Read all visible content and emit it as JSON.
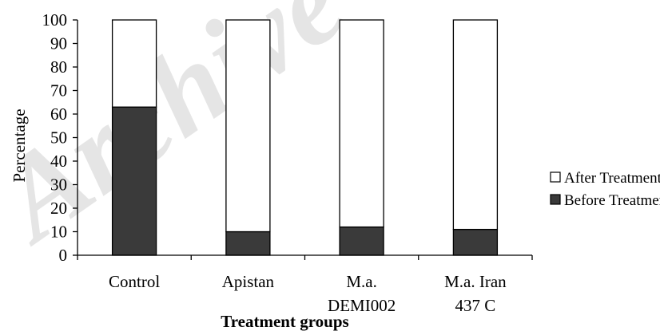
{
  "watermark": "Archive",
  "chart_data": {
    "type": "bar",
    "stacked": true,
    "categories": [
      [
        "Control"
      ],
      [
        "Apistan"
      ],
      [
        "M.a.",
        "DEMI002"
      ],
      [
        "M.a. Iran",
        "437 C"
      ]
    ],
    "series": [
      {
        "name": "Before Treatment",
        "color": "#3a3a3a",
        "values": [
          63,
          10,
          12,
          11
        ]
      },
      {
        "name": "After Treatment",
        "color": "#ffffff",
        "values": [
          37,
          90,
          88,
          89
        ]
      }
    ],
    "ylabel": "Percentage",
    "xlabel": "Treatment groups",
    "ylim": [
      0,
      100
    ],
    "yticks": [
      0,
      10,
      20,
      30,
      40,
      50,
      60,
      70,
      80,
      90,
      100
    ],
    "grid": false,
    "legend": {
      "placement": "right",
      "entries": [
        "After Treatment",
        "Before Treatment"
      ]
    }
  }
}
